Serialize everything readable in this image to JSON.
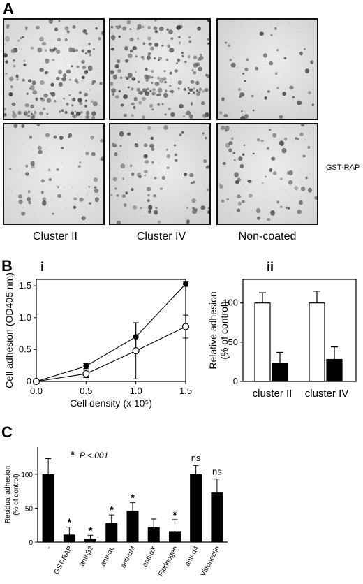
{
  "panel_a": {
    "letter": "A",
    "columns": [
      "Cluster II",
      "Cluster IV",
      "Non-coated"
    ],
    "row_label": "GST-RAP",
    "cells": [
      {
        "col": 0,
        "row": 0,
        "density": 0.85,
        "seed": 11,
        "shade": "#d4d4d4"
      },
      {
        "col": 1,
        "row": 0,
        "density": 1.0,
        "seed": 23,
        "shade": "#d0d0d0"
      },
      {
        "col": 2,
        "row": 0,
        "density": 0.25,
        "seed": 37,
        "shade": "#cfcfcf"
      },
      {
        "col": 0,
        "row": 1,
        "density": 0.3,
        "seed": 41,
        "shade": "#d6d6d6"
      },
      {
        "col": 1,
        "row": 1,
        "density": 0.45,
        "seed": 53,
        "shade": "#cdcdcd"
      },
      {
        "col": 2,
        "row": 1,
        "density": 0.4,
        "seed": 67,
        "shade": "#d2d2d2"
      }
    ]
  },
  "panel_b": {
    "letter": "B",
    "sub_i": "i",
    "sub_ii": "ii"
  },
  "panel_c": {
    "letter": "C",
    "legend_star": "*",
    "legend_text": "P <.001"
  },
  "chart_data": [
    {
      "id": "Bi",
      "type": "line",
      "xlabel": "Cell density (x 10⁵)",
      "ylabel": "Cell adhesion (OD405 nm)",
      "xlim": [
        0,
        1.5
      ],
      "ylim": [
        0,
        1.6
      ],
      "xticks": [
        "0.0",
        "0.5",
        "1.0",
        "1.5"
      ],
      "yticks": [
        "0",
        "0.5",
        "1.0",
        "1.5"
      ],
      "x": [
        0,
        0.5,
        1.0,
        1.5
      ],
      "series": [
        {
          "marker": "filled",
          "values": [
            0.0,
            0.24,
            0.7,
            1.53
          ],
          "err": [
            0.0,
            0.04,
            0.22,
            0.04
          ]
        },
        {
          "marker": "open",
          "values": [
            0.0,
            0.12,
            0.48,
            0.86
          ],
          "err": [
            0.0,
            0.06,
            0.44,
            0.18
          ]
        }
      ]
    },
    {
      "id": "Bii",
      "type": "bar",
      "ylabel": "Relative adhesion (% of control)",
      "ylim": [
        0,
        130
      ],
      "yticks": [
        "0",
        "50",
        "100"
      ],
      "categories": [
        "cluster II",
        "cluster IV"
      ],
      "series": [
        {
          "fill": "white",
          "values": [
            100,
            100
          ],
          "err": [
            13,
            15
          ]
        },
        {
          "fill": "black",
          "values": [
            23,
            28
          ],
          "err": [
            14,
            16
          ]
        }
      ]
    },
    {
      "id": "C",
      "type": "bar",
      "ylabel": "Residual adhesion (% of control)",
      "ylim": [
        0,
        140
      ],
      "yticks": [
        "0",
        "50",
        "100"
      ],
      "categories": [
        "-",
        "GST-RAP",
        "anti-β2",
        "anti-αL",
        "anti-αM",
        "anti-αX",
        "Fibrinogen",
        "anti-α4",
        "Vitronectin"
      ],
      "values": [
        100,
        11,
        5,
        28,
        46,
        22,
        16,
        100,
        73
      ],
      "err": [
        23,
        11,
        5,
        12,
        12,
        12,
        17,
        13,
        20
      ],
      "annotations": [
        "",
        "*",
        "*",
        "*",
        "*",
        "",
        "*",
        "ns",
        "ns"
      ]
    }
  ]
}
